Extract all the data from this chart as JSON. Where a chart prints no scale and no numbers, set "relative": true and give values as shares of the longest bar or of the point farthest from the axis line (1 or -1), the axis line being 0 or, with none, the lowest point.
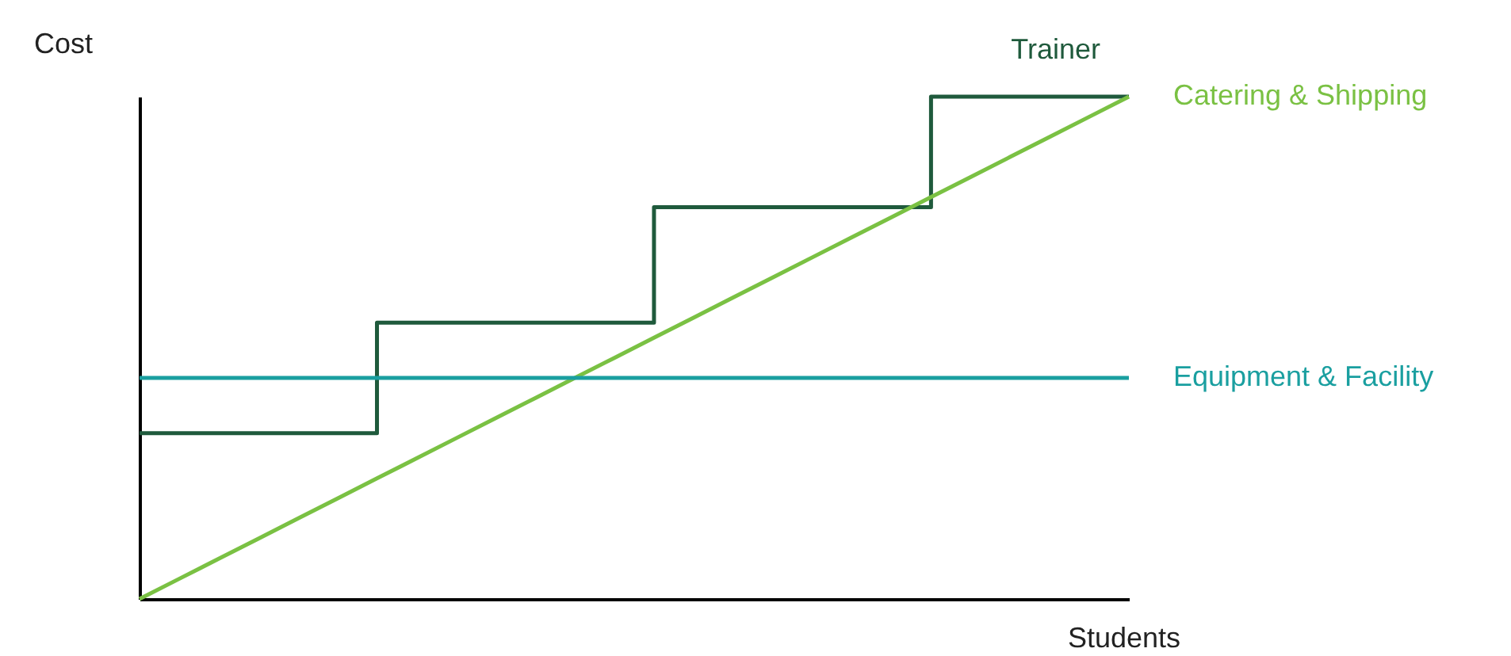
{
  "chart_data": {
    "type": "line",
    "xlabel": "Students",
    "ylabel": "Cost",
    "relative": true,
    "legend": false,
    "grid": false,
    "tick_labels": false,
    "categories": [
      null,
      null,
      null,
      null,
      null,
      null,
      null,
      null,
      null,
      null,
      null,
      null,
      null,
      null,
      null,
      null,
      null,
      null,
      null,
      null,
      null,
      null,
      null,
      null,
      null,
      null
    ],
    "series": [
      {
        "name": "Trainer",
        "type": "step",
        "color": "#1f5a3c",
        "values": [
          0.33,
          0.33,
          0.33,
          0.33,
          0.33,
          0.33,
          0.55,
          0.55,
          0.55,
          0.55,
          0.55,
          0.55,
          0.55,
          0.78,
          0.78,
          0.78,
          0.78,
          0.78,
          0.78,
          0.78,
          1,
          1,
          1,
          1,
          1,
          1
        ]
      },
      {
        "name": "Catering & Shipping",
        "color": "#7ac143",
        "values": [
          0,
          0.04,
          0.08,
          0.12,
          0.16,
          0.2,
          0.24,
          0.28,
          0.32,
          0.36,
          0.4,
          0.44,
          0.48,
          0.52,
          0.56,
          0.6,
          0.64,
          0.68,
          0.72,
          0.76,
          0.8,
          0.84,
          0.88,
          0.92,
          0.96,
          1
        ]
      },
      {
        "name": "Equipment & Facility",
        "color": "#1a9fa0",
        "values": [
          0.44,
          0.44,
          0.44,
          0.44,
          0.44,
          0.44,
          0.44,
          0.44,
          0.44,
          0.44,
          0.44,
          0.44,
          0.44,
          0.44,
          0.44,
          0.44,
          0.44,
          0.44,
          0.44,
          0.44,
          0.44,
          0.44,
          0.44,
          0.44,
          0.44,
          0.44
        ]
      }
    ]
  }
}
